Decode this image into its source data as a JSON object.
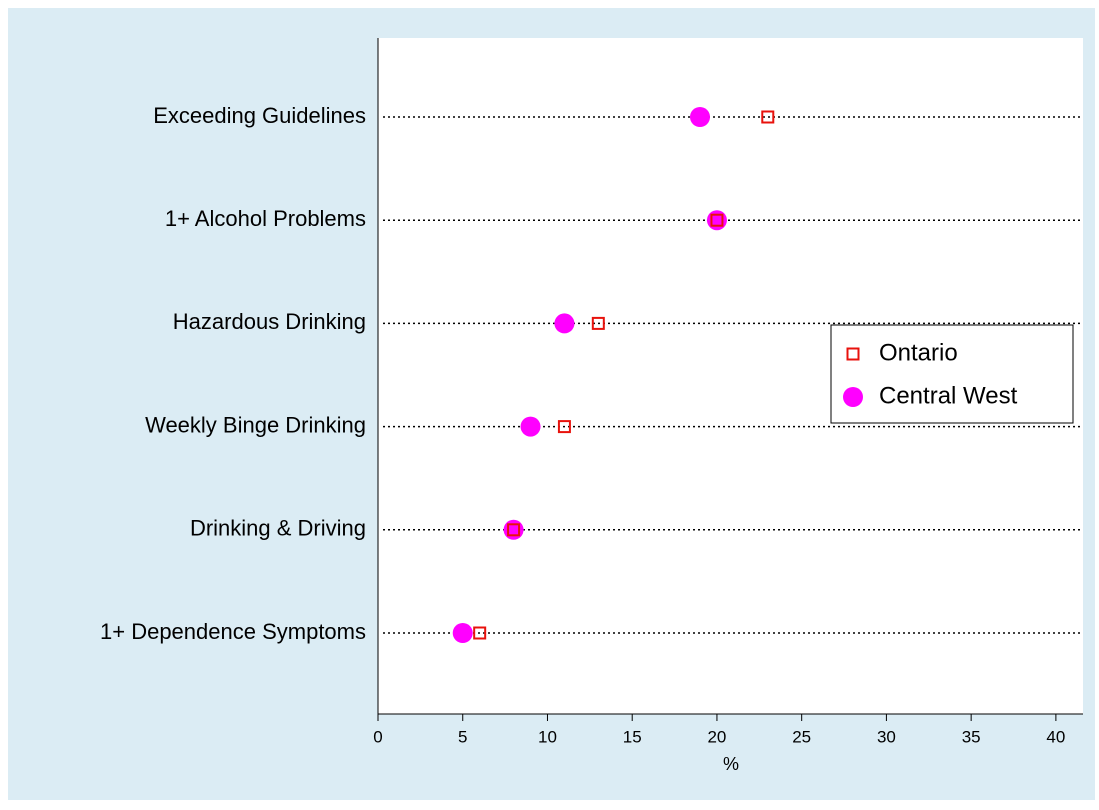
{
  "chart_data": {
    "type": "dot",
    "categories": [
      "Exceeding Guidelines",
      "1+ Alcohol Problems",
      "Hazardous Drinking",
      "Weekly Binge Drinking",
      "Drinking & Driving",
      "1+ Dependence Symptoms"
    ],
    "series": [
      {
        "name": "Ontario",
        "color": "#e8120c",
        "marker": "square",
        "values": [
          23,
          20,
          13,
          11,
          8,
          6
        ]
      },
      {
        "name": "Central West",
        "color": "#ff00ff",
        "marker": "circle",
        "values": [
          19,
          20,
          11,
          9,
          8,
          5
        ]
      }
    ],
    "xlabel": "%",
    "xlim": [
      0,
      41.6
    ],
    "xticks": [
      0,
      5,
      10,
      15,
      20,
      25,
      30,
      35,
      40
    ],
    "grid": true,
    "legend": "right"
  }
}
